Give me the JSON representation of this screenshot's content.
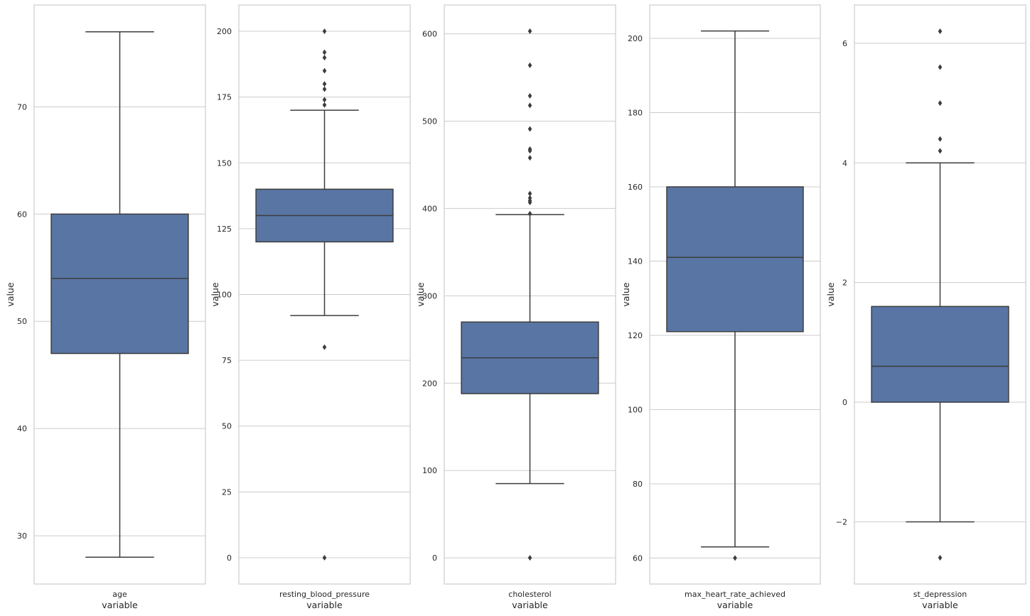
{
  "colors": {
    "box_fill": "#5875a4",
    "line": "#3d3d3d",
    "grid": "#cccccc",
    "frame": "#cccccc",
    "text": "#262626",
    "background": "#ffffff"
  },
  "chart_data": [
    {
      "type": "box",
      "xlabel": "variable",
      "ylabel": "value",
      "category": "age",
      "grid": true,
      "ylim": [
        25.5,
        79.5
      ],
      "yticks": [
        30,
        40,
        50,
        60,
        70
      ],
      "ytick_labels": [
        "30",
        "40",
        "50",
        "60",
        "70"
      ],
      "whisker_low": 28,
      "q1": 47,
      "median": 54,
      "q3": 60,
      "whisker_high": 77,
      "outliers": []
    },
    {
      "type": "box",
      "xlabel": "variable",
      "ylabel": "value",
      "category": "resting_blood_pressure",
      "grid": true,
      "ylim": [
        -10,
        210
      ],
      "yticks": [
        0,
        25,
        50,
        75,
        100,
        125,
        150,
        175,
        200
      ],
      "ytick_labels": [
        "0",
        "25",
        "50",
        "75",
        "100",
        "125",
        "150",
        "175",
        "200"
      ],
      "whisker_low": 92,
      "q1": 120,
      "median": 130,
      "q3": 140,
      "whisker_high": 170,
      "outliers": [
        0,
        80,
        172,
        174,
        178,
        180,
        185,
        190,
        192,
        200
      ]
    },
    {
      "type": "box",
      "xlabel": "variable",
      "ylabel": "value",
      "category": "cholesterol",
      "grid": true,
      "ylim": [
        -30,
        633
      ],
      "yticks": [
        0,
        100,
        200,
        300,
        400,
        500,
        600
      ],
      "ytick_labels": [
        "0",
        "100",
        "200",
        "300",
        "400",
        "500",
        "600"
      ],
      "whisker_low": 85,
      "q1": 188,
      "median": 229,
      "q3": 270,
      "whisker_high": 393,
      "outliers": [
        0,
        394,
        407,
        409,
        412,
        417,
        458,
        466,
        468,
        491,
        518,
        529,
        564,
        603
      ]
    },
    {
      "type": "box",
      "xlabel": "variable",
      "ylabel": "value",
      "category": "max_heart_rate_achieved",
      "grid": true,
      "ylim": [
        53,
        209
      ],
      "yticks": [
        60,
        80,
        100,
        120,
        140,
        160,
        180,
        200
      ],
      "ytick_labels": [
        "60",
        "80",
        "100",
        "120",
        "140",
        "160",
        "180",
        "200"
      ],
      "whisker_low": 63,
      "q1": 121,
      "median": 141,
      "q3": 160,
      "whisker_high": 202,
      "outliers": [
        60
      ]
    },
    {
      "type": "box",
      "xlabel": "variable",
      "ylabel": "value",
      "category": "st_depression",
      "grid": true,
      "ylim": [
        -3.04,
        6.64
      ],
      "yticks": [
        -2,
        0,
        2,
        4,
        6
      ],
      "ytick_labels": [
        "−2",
        "0",
        "2",
        "4",
        "6"
      ],
      "whisker_low": -2,
      "q1": 0,
      "median": 0.6,
      "q3": 1.6,
      "whisker_high": 4,
      "outliers": [
        -2.6,
        4.2,
        4.4,
        5.0,
        5.6,
        6.2
      ]
    }
  ]
}
